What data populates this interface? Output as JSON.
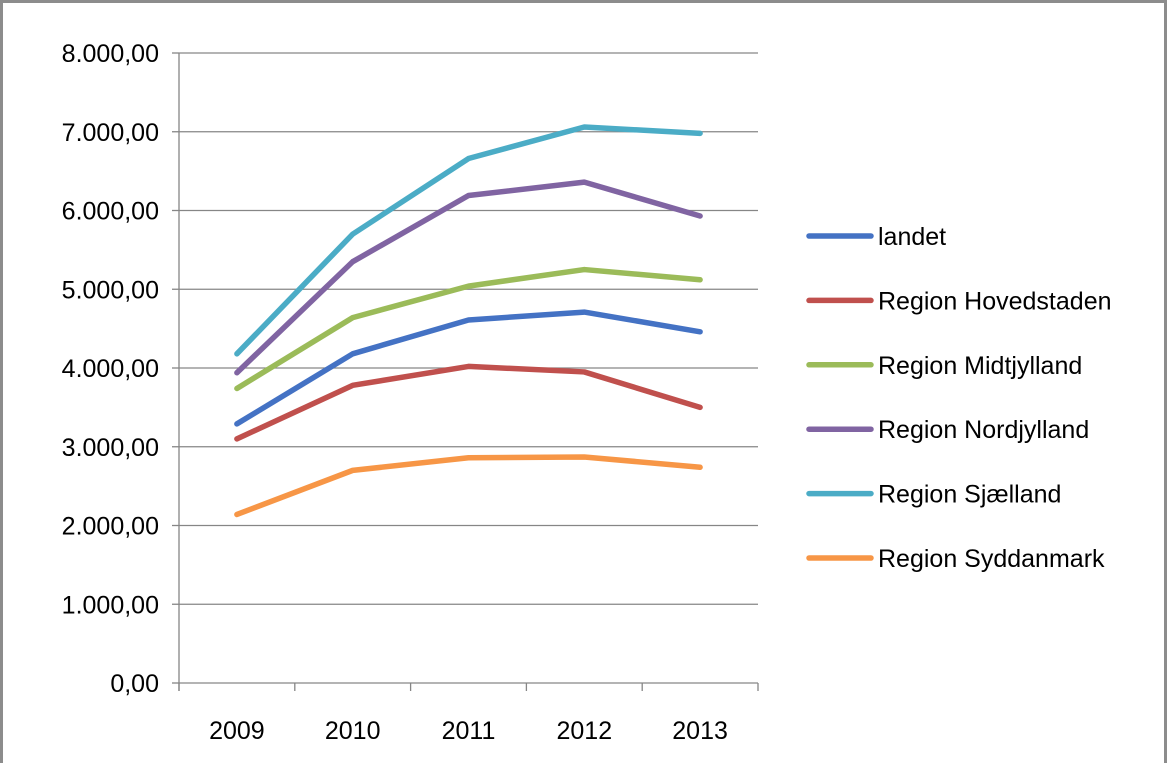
{
  "chart_data": {
    "type": "line",
    "title": "",
    "xlabel": "",
    "ylabel": "",
    "categories": [
      "2009",
      "2010",
      "2011",
      "2012",
      "2013"
    ],
    "ylim": [
      0,
      8000
    ],
    "y_ticks": [
      0,
      1000,
      2000,
      3000,
      4000,
      5000,
      6000,
      7000,
      8000
    ],
    "y_tick_labels": [
      "0,00",
      "1.000,00",
      "2.000,00",
      "3.000,00",
      "4.000,00",
      "5.000,00",
      "6.000,00",
      "7.000,00",
      "8.000,00"
    ],
    "grid": true,
    "legend_position": "right",
    "series": [
      {
        "name": "landet",
        "color": "#4472c4",
        "values": [
          3290,
          4180,
          4610,
          4710,
          4460
        ]
      },
      {
        "name": "Region Hovedstaden",
        "color": "#c0504d",
        "values": [
          3100,
          3780,
          4020,
          3950,
          3500
        ]
      },
      {
        "name": "Region Midtjylland",
        "color": "#9bbb59",
        "values": [
          3740,
          4640,
          5040,
          5250,
          5120
        ]
      },
      {
        "name": "Region Nordjylland",
        "color": "#8064a2",
        "values": [
          3940,
          5350,
          6190,
          6360,
          5930
        ]
      },
      {
        "name": "Region Sjælland",
        "color": "#4bacc6",
        "values": [
          4180,
          5700,
          6660,
          7060,
          6980
        ]
      },
      {
        "name": "Region Syddanmark",
        "color": "#f79646",
        "values": [
          2140,
          2700,
          2860,
          2870,
          2740
        ]
      }
    ]
  }
}
